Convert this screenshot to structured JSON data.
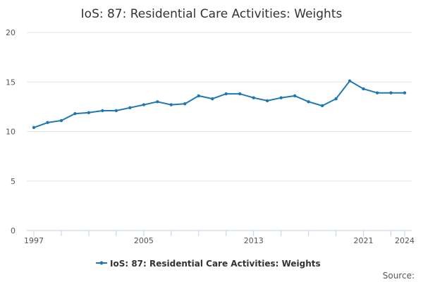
{
  "chart_data": {
    "type": "line",
    "title": "IoS: 87: Residential Care Activities: Weights",
    "xlabel": "",
    "ylabel": "",
    "x": [
      1997,
      1998,
      1999,
      2000,
      2001,
      2002,
      2003,
      2004,
      2005,
      2006,
      2007,
      2008,
      2009,
      2010,
      2011,
      2012,
      2013,
      2014,
      2015,
      2016,
      2017,
      2018,
      2019,
      2020,
      2021,
      2022,
      2023,
      2024
    ],
    "series": [
      {
        "name": "IoS: 87: Residential Care Activities: Weights",
        "color": "#1f78b4",
        "values": [
          10.4,
          10.9,
          11.1,
          11.8,
          11.9,
          12.1,
          12.1,
          12.4,
          12.7,
          13.0,
          12.7,
          12.8,
          13.6,
          13.3,
          13.8,
          13.8,
          13.4,
          13.1,
          13.4,
          13.6,
          13.0,
          12.6,
          13.3,
          15.1,
          14.3,
          13.9,
          13.9,
          13.9
        ]
      }
    ],
    "xticks": [
      "1997",
      "2005",
      "2013",
      "2021",
      "2024"
    ],
    "yticks": [
      "0",
      "5",
      "10",
      "15",
      "20"
    ],
    "ylim": [
      0,
      20
    ],
    "xlim": [
      1997,
      2024
    ],
    "grid": true,
    "legend_position": "bottom"
  },
  "source_label": "Source:"
}
